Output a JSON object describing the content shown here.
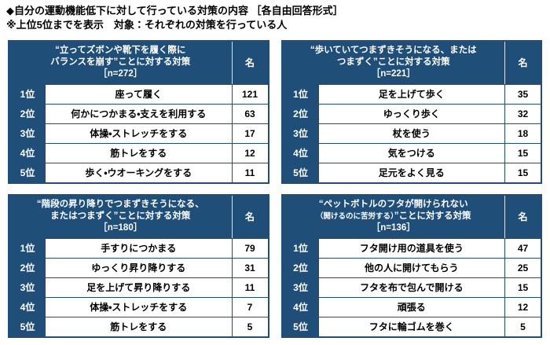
{
  "page": {
    "title": "◆自分の運動機能低下に対して行っている対策の内容 ［各自由回答形式］",
    "subtitle": "※上位5位までを表示　対象：それぞれの対策を行っている人"
  },
  "colors": {
    "header_bg": "#1f4e79",
    "border": "#1f4e79",
    "header_text": "#ffffff",
    "body_text": "#000000"
  },
  "chart_data": [
    {
      "type": "table",
      "name": "standing-balance",
      "header": {
        "line1": "“立ってズボンや靴下を履く際に",
        "line2": "バランスを崩す”ことに対する対策",
        "n": "［n=272］",
        "unit": "名"
      },
      "rows": [
        {
          "rank": "1位",
          "answer": "座って履く",
          "count": "121"
        },
        {
          "rank": "2位",
          "answer": "何かにつかまる・支えを利用する",
          "count": "63"
        },
        {
          "rank": "3位",
          "answer": "体操・ストレッチをする",
          "count": "17"
        },
        {
          "rank": "4位",
          "answer": "筋トレをする",
          "count": "12"
        },
        {
          "rank": "5位",
          "answer": "歩く・ウオーキングをする",
          "count": "11"
        }
      ]
    },
    {
      "type": "table",
      "name": "walking-stumble",
      "header": {
        "line1": "“歩いていてつまずきそうになる、または",
        "line2": "つまずく”ことに対する対策",
        "n": "［n=221］",
        "unit": "名"
      },
      "rows": [
        {
          "rank": "1位",
          "answer": "足を上げて歩く",
          "count": "35"
        },
        {
          "rank": "2位",
          "answer": "ゆっくり歩く",
          "count": "32"
        },
        {
          "rank": "3位",
          "answer": "杖を使う",
          "count": "18"
        },
        {
          "rank": "4位",
          "answer": "気をつける",
          "count": "15"
        },
        {
          "rank": "5位",
          "answer": "足元をよく見る",
          "count": "15"
        }
      ]
    },
    {
      "type": "table",
      "name": "stairs-stumble",
      "header": {
        "line1": "“階段の昇り降りでつまずきそうになる、",
        "line2": "またはつまずく”ことに対する対策",
        "n": "［n=180］",
        "unit": "名"
      },
      "rows": [
        {
          "rank": "1位",
          "answer": "手すりにつかまる",
          "count": "79"
        },
        {
          "rank": "2位",
          "answer": "ゆっくり昇り降りする",
          "count": "31"
        },
        {
          "rank": "3位",
          "answer": "足を上げて昇り降りする",
          "count": "11"
        },
        {
          "rank": "4位",
          "answer": "体操・ストレッチをする",
          "count": "7"
        },
        {
          "rank": "5位",
          "answer": "筋トレをする",
          "count": "5"
        }
      ]
    },
    {
      "type": "table",
      "name": "bottle-cap",
      "header": {
        "line1": "“ペットボトルのフタが開けられない",
        "line2_small": "（開けるのに苦労する）",
        "line2_rest": "”ことに対する対策",
        "n": "［n=136］",
        "unit": "名"
      },
      "rows": [
        {
          "rank": "1位",
          "answer": "フタ開け用の道具を使う",
          "count": "47"
        },
        {
          "rank": "2位",
          "answer": "他の人に開けてもらう",
          "count": "25"
        },
        {
          "rank": "3位",
          "answer": "フタを布で包んで開ける",
          "count": "15"
        },
        {
          "rank": "4位",
          "answer": "頑張る",
          "count": "12"
        },
        {
          "rank": "5位",
          "answer": "フタに輪ゴムを巻く",
          "count": "5"
        }
      ]
    }
  ]
}
